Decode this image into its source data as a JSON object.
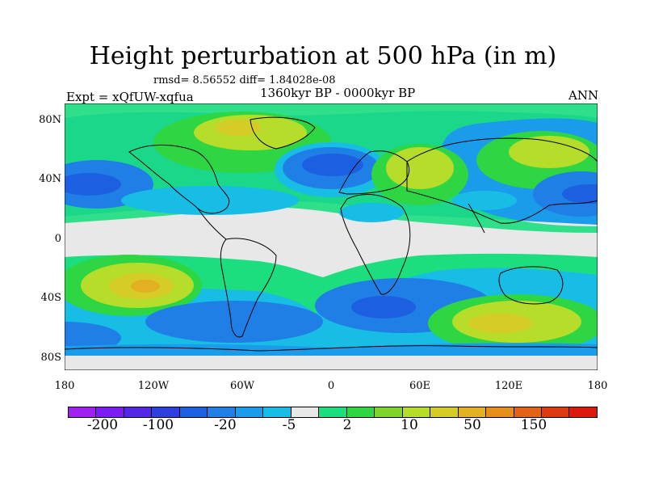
{
  "title": "Height perturbation at 500 hPa (in m)",
  "stats": "rmsd= 8.56552 diff= 1.84028e-08",
  "period": "1360kyr BP - 0000kyr BP",
  "experiment": "Expt = xQfUW-xqfua",
  "season": "ANN",
  "lat_labels": [
    "80N",
    "40N",
    "0",
    "40S",
    "80S"
  ],
  "lon_labels": [
    "180",
    "120W",
    "60W",
    "0",
    "60E",
    "120E",
    "180"
  ],
  "colorbar": {
    "labels": [
      "-200",
      "-100",
      "-20",
      "-5",
      "2",
      "10",
      "50",
      "150"
    ],
    "colors": [
      "#a020f0",
      "#7b1cf2",
      "#5227e6",
      "#2f3fdf",
      "#1c5fe1",
      "#1f7fe6",
      "#1a9cea",
      "#18bde6",
      "#e8e8e8",
      "#1cde7f",
      "#2ed644",
      "#7fd42c",
      "#b7dd2b",
      "#d6cc28",
      "#e2b021",
      "#e58e1a",
      "#e36314",
      "#df3a10",
      "#dc190c"
    ]
  },
  "field_colors": {
    "neutral": "#e8e8e8",
    "light_cyan": "#18bde6",
    "cyan": "#1a9cea",
    "blue": "#1f7fe6",
    "dark_blue": "#1c5fe1",
    "deep_blue": "#2f3fdf",
    "mint": "#1cde7f",
    "green": "#2ed644",
    "yellow_green": "#7fd42c",
    "lime": "#b7dd2b",
    "olive": "#d6cc28",
    "orange": "#e2b021"
  }
}
